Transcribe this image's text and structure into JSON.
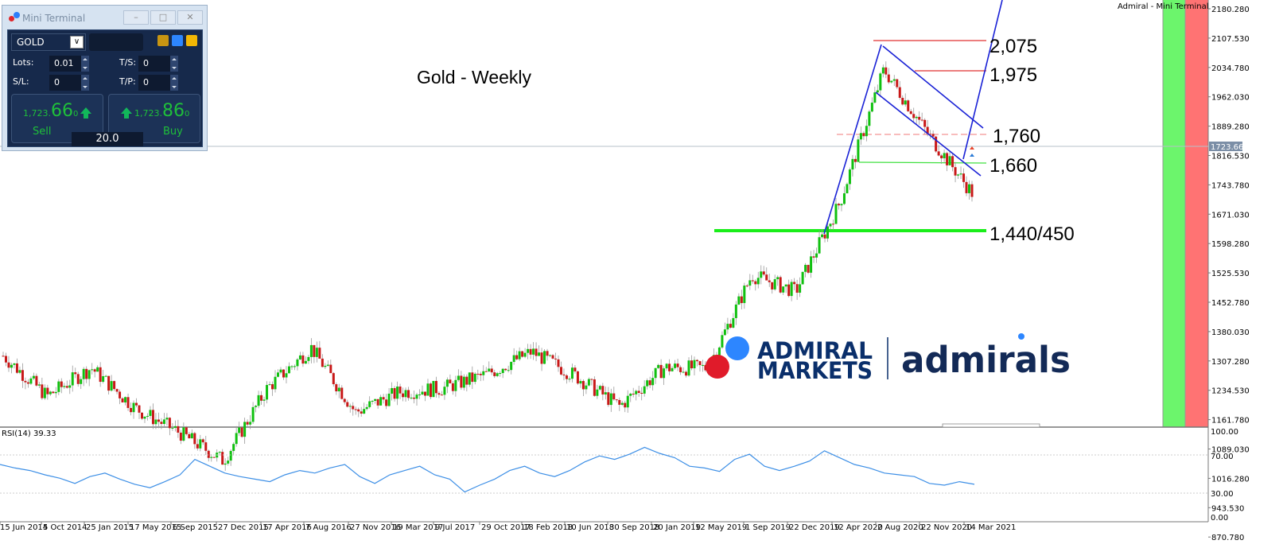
{
  "window": {
    "ea_name": "Admiral - Mini Terminal"
  },
  "mini_terminal": {
    "title": "Mini Terminal",
    "minimize_label": "–",
    "restore_label": "□",
    "close_label": "✕",
    "symbol": "GOLD",
    "lots_label": "Lots:",
    "lots_value": "0.01",
    "sl_label": "S/L:",
    "sl_value": "0",
    "ts_label": "T/S:",
    "ts_value": "0",
    "tp_label": "T/P:",
    "tp_value": "0",
    "sell_price_prefix": "1,723.",
    "sell_price_big": "66",
    "sell_price_suffix": "0",
    "buy_price_prefix": "1,723.",
    "buy_price_big": "86",
    "buy_price_suffix": "0",
    "sell_label": "Sell",
    "buy_label": "Buy",
    "spread": "20.0"
  },
  "branding": {
    "logo_line1": "ADMIRAL",
    "logo_line2": "MARKETS",
    "logo_alt": "admirals",
    "dot_blue": "#2d86ff",
    "dot_red": "#e01b2a",
    "text_color": "#0a2f6b"
  },
  "chart_data": [
    {
      "type": "candlestick",
      "title": "Gold - Weekly",
      "symbol": "GOLD",
      "timeframe": "Weekly",
      "current_price": "1723.660",
      "y_ticks": [
        "2180.280",
        "2107.530",
        "2034.780",
        "1962.030",
        "1889.280",
        "1816.530",
        "1743.780",
        "1671.030",
        "1598.280",
        "1525.530",
        "1452.780",
        "1380.030",
        "1307.280",
        "1234.530",
        "1161.780",
        "1089.030",
        "1016.280",
        "943.530",
        "870.780"
      ],
      "x_ticks": [
        "15 Jun 2014",
        "5 Oct 2014",
        "25 Jan 2015",
        "17 May 2015",
        "6 Sep 2015",
        "27 Dec 2015",
        "17 Apr 2016",
        "7 Aug 2016",
        "27 Nov 2016",
        "19 Mar 2017",
        "9 Jul 2017",
        "29 Oct 2017",
        "18 Feb 2018",
        "10 Jun 2018",
        "30 Sep 2018",
        "20 Jan 2019",
        "12 May 2019",
        "1 Sep 2019",
        "22 Dec 2019",
        "12 Apr 2020",
        "2 Aug 2020",
        "22 Nov 2020",
        "14 Mar 2021"
      ],
      "approx_close_path": [
        {
          "date": "Jun 2014",
          "close": 1320
        },
        {
          "date": "Oct 2014",
          "close": 1220
        },
        {
          "date": "Jan 2015",
          "close": 1290
        },
        {
          "date": "May 2015",
          "close": 1190
        },
        {
          "date": "Sep 2015",
          "close": 1130
        },
        {
          "date": "Dec 2015",
          "close": 1060
        },
        {
          "date": "Apr 2016",
          "close": 1240
        },
        {
          "date": "Aug 2016",
          "close": 1340
        },
        {
          "date": "Nov 2016",
          "close": 1180
        },
        {
          "date": "Mar 2017",
          "close": 1230
        },
        {
          "date": "Jul 2017",
          "close": 1240
        },
        {
          "date": "Oct 2017",
          "close": 1275
        },
        {
          "date": "Feb 2018",
          "close": 1330
        },
        {
          "date": "Jun 2018",
          "close": 1270
        },
        {
          "date": "Sep 2018",
          "close": 1195
        },
        {
          "date": "Jan 2019",
          "close": 1290
        },
        {
          "date": "May 2019",
          "close": 1290
        },
        {
          "date": "Sep 2019",
          "close": 1520
        },
        {
          "date": "Dec 2019",
          "close": 1480
        },
        {
          "date": "Apr 2020",
          "close": 1700
        },
        {
          "date": "Aug 2020",
          "close": 2030
        },
        {
          "date": "Nov 2020",
          "close": 1870
        },
        {
          "date": "Mar 2021",
          "close": 1724
        }
      ],
      "annotations": [
        {
          "label": "2,075",
          "type": "resistance",
          "color": "#e03030"
        },
        {
          "label": "1,975",
          "type": "resistance",
          "color": "#e03030"
        },
        {
          "label": "1,760",
          "type": "resistance-dashed",
          "color": "#f07070"
        },
        {
          "label": "1,660",
          "type": "support",
          "color": "#40e040"
        },
        {
          "label": "1,440/450",
          "type": "support-thick",
          "color": "#1aee1a"
        }
      ],
      "trendlines": [
        "ascending channel line (blue)",
        "descending channel upper (blue)",
        "descending channel lower (blue)",
        "steep breakout line (blue)"
      ],
      "grid": false
    },
    {
      "type": "line",
      "title": "RSI(14) 39.33",
      "indicator": "RSI",
      "period": 14,
      "last_value": 39.33,
      "ylim": [
        0,
        100
      ],
      "y_ticks": [
        "100.00",
        "70.00",
        "30.00",
        "0.00"
      ],
      "levels": [
        70,
        30
      ],
      "approx_values": [
        62,
        58,
        55,
        50,
        46,
        40,
        48,
        52,
        45,
        39,
        35,
        42,
        50,
        68,
        60,
        52,
        48,
        45,
        42,
        50,
        55,
        52,
        58,
        62,
        48,
        40,
        50,
        55,
        60,
        50,
        45,
        30,
        38,
        45,
        55,
        60,
        52,
        48,
        55,
        65,
        72,
        68,
        74,
        82,
        75,
        70,
        60,
        58,
        54,
        68,
        74,
        60,
        55,
        60,
        66,
        78,
        70,
        62,
        58,
        52,
        50,
        48,
        40,
        38,
        42,
        39
      ]
    }
  ]
}
